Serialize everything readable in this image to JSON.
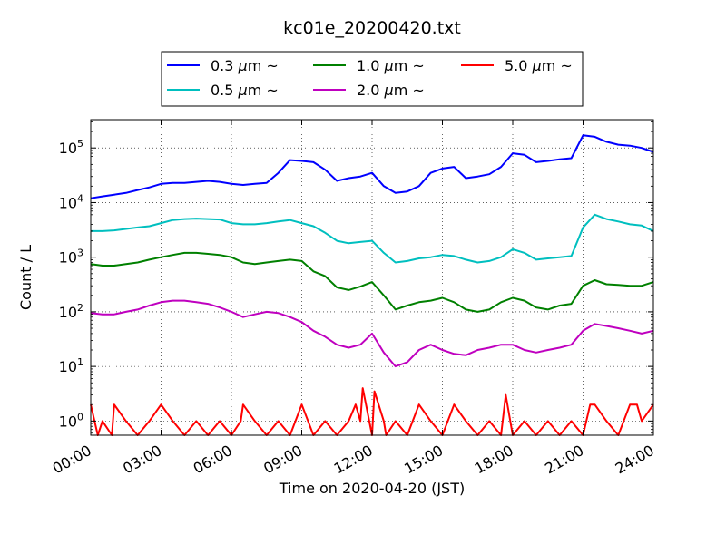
{
  "chart_data": {
    "type": "line",
    "title": "kc01e_20200420.txt",
    "xlabel": "Time on 2020-04-20 (JST)",
    "ylabel": "Count / L",
    "y_scale": "log",
    "xlim": [
      0,
      24
    ],
    "ylim": [
      0.55,
      330000
    ],
    "grid": true,
    "x_tick_labels": [
      "00:00",
      "03:00",
      "06:00",
      "09:00",
      "12:00",
      "15:00",
      "18:00",
      "21:00",
      "24:00"
    ],
    "x_tick_hours": [
      0,
      3,
      6,
      9,
      12,
      15,
      18,
      21,
      24
    ],
    "y_tick_exponents": [
      0,
      1,
      2,
      3,
      4,
      5
    ],
    "y_tick_base": "10",
    "legend_position": "top-center",
    "series": [
      {
        "name": "0.3 μm ~",
        "label_prefix": "0.3",
        "color": "#0000ff",
        "x": [
          0,
          0.5,
          1,
          1.5,
          2,
          2.5,
          3,
          3.5,
          4,
          4.5,
          5,
          5.5,
          6,
          6.5,
          7,
          7.5,
          8,
          8.5,
          9,
          9.5,
          10,
          10.5,
          11,
          11.5,
          12,
          12.5,
          13,
          13.5,
          14,
          14.5,
          15,
          15.5,
          16,
          16.5,
          17,
          17.5,
          18,
          18.5,
          19,
          19.5,
          20,
          20.5,
          21,
          21.5,
          22,
          22.5,
          23,
          23.5,
          24
        ],
        "values": [
          12000,
          13000,
          14000,
          15000,
          17000,
          19000,
          22000,
          23000,
          23000,
          24000,
          25000,
          24000,
          22000,
          21000,
          22000,
          23000,
          35000,
          60000,
          58000,
          55000,
          40000,
          25000,
          28000,
          30000,
          35000,
          20000,
          15000,
          16000,
          20000,
          35000,
          42000,
          45000,
          28000,
          30000,
          33000,
          45000,
          80000,
          75000,
          55000,
          58000,
          62000,
          65000,
          170000,
          160000,
          130000,
          115000,
          110000,
          100000,
          85000
        ]
      },
      {
        "name": "0.5 μm ~",
        "label_prefix": "0.5",
        "color": "#00bfbf",
        "x": [
          0,
          0.5,
          1,
          1.5,
          2,
          2.5,
          3,
          3.5,
          4,
          4.5,
          5,
          5.5,
          6,
          6.5,
          7,
          7.5,
          8,
          8.5,
          9,
          9.5,
          10,
          10.5,
          11,
          11.5,
          12,
          12.5,
          13,
          13.5,
          14,
          14.5,
          15,
          15.5,
          16,
          16.5,
          17,
          17.5,
          18,
          18.5,
          19,
          19.5,
          20,
          20.5,
          21,
          21.5,
          22,
          22.5,
          23,
          23.5,
          24
        ],
        "values": [
          3000,
          3000,
          3100,
          3300,
          3500,
          3700,
          4200,
          4800,
          5000,
          5100,
          5000,
          4900,
          4200,
          4000,
          4000,
          4200,
          4500,
          4800,
          4200,
          3700,
          2800,
          2000,
          1800,
          1900,
          2000,
          1200,
          800,
          850,
          950,
          1000,
          1100,
          1050,
          900,
          800,
          850,
          1000,
          1400,
          1200,
          900,
          950,
          1000,
          1050,
          3500,
          6000,
          5000,
          4500,
          4000,
          3800,
          3000
        ]
      },
      {
        "name": "1.0 μm ~",
        "label_prefix": "1.0",
        "color": "#008000",
        "x": [
          0,
          0.5,
          1,
          1.5,
          2,
          2.5,
          3,
          3.5,
          4,
          4.5,
          5,
          5.5,
          6,
          6.5,
          7,
          7.5,
          8,
          8.5,
          9,
          9.5,
          10,
          10.5,
          11,
          11.5,
          12,
          12.5,
          13,
          13.5,
          14,
          14.5,
          15,
          15.5,
          16,
          16.5,
          17,
          17.5,
          18,
          18.5,
          19,
          19.5,
          20,
          20.5,
          21,
          21.5,
          22,
          22.5,
          23,
          23.5,
          24
        ],
        "values": [
          750,
          700,
          700,
          750,
          800,
          900,
          1000,
          1100,
          1200,
          1200,
          1150,
          1100,
          1000,
          800,
          750,
          800,
          850,
          900,
          850,
          550,
          450,
          280,
          250,
          290,
          350,
          200,
          110,
          130,
          150,
          160,
          180,
          150,
          110,
          100,
          110,
          150,
          180,
          160,
          120,
          110,
          130,
          140,
          300,
          380,
          320,
          310,
          300,
          300,
          350
        ]
      },
      {
        "name": "2.0 μm ~",
        "label_prefix": "2.0",
        "color": "#bf00bf",
        "x": [
          0,
          0.5,
          1,
          1.5,
          2,
          2.5,
          3,
          3.5,
          4,
          4.5,
          5,
          5.5,
          6,
          6.5,
          7,
          7.5,
          8,
          8.5,
          9,
          9.5,
          10,
          10.5,
          11,
          11.5,
          12,
          12.5,
          13,
          13.5,
          14,
          14.5,
          15,
          15.5,
          16,
          16.5,
          17,
          17.5,
          18,
          18.5,
          19,
          19.5,
          20,
          20.5,
          21,
          21.5,
          22,
          22.5,
          23,
          23.5,
          24
        ],
        "values": [
          95,
          90,
          90,
          100,
          110,
          130,
          150,
          160,
          160,
          150,
          140,
          120,
          100,
          80,
          90,
          100,
          95,
          80,
          65,
          45,
          35,
          25,
          22,
          25,
          40,
          18,
          10,
          12,
          20,
          25,
          20,
          17,
          16,
          20,
          22,
          25,
          25,
          20,
          18,
          20,
          22,
          25,
          45,
          60,
          55,
          50,
          45,
          40,
          45
        ]
      },
      {
        "name": "5.0 μm ~",
        "label_prefix": "5.0",
        "color": "#ff0000",
        "x": [
          0,
          0.3,
          0.5,
          0.9,
          1,
          1.5,
          2,
          2.5,
          3,
          3.5,
          4,
          4.5,
          5,
          5.5,
          6,
          6.4,
          6.5,
          7,
          7.5,
          8,
          8.5,
          9,
          9.5,
          10,
          10.5,
          11,
          11.3,
          11.5,
          11.6,
          12,
          12.1,
          12.5,
          12.6,
          13,
          13.5,
          14,
          14.5,
          15,
          15.5,
          16,
          16.5,
          17,
          17.5,
          17.7,
          18,
          18.5,
          19,
          19.5,
          20,
          20.5,
          21,
          21.3,
          21.5,
          22,
          22.5,
          23,
          23.3,
          23.5,
          24
        ],
        "values": [
          2,
          0.55,
          1,
          0.55,
          2,
          1,
          0.55,
          1,
          2,
          1,
          0.55,
          1,
          0.55,
          1,
          0.55,
          1,
          2,
          1,
          0.55,
          1,
          0.55,
          2,
          0.55,
          1,
          0.55,
          1,
          2,
          1,
          4,
          0.55,
          3.5,
          1,
          0.55,
          1,
          0.55,
          2,
          1,
          0.55,
          2,
          1,
          0.55,
          1,
          0.55,
          3,
          0.55,
          1,
          0.55,
          1,
          0.55,
          1,
          0.55,
          2,
          2,
          1,
          0.55,
          2,
          2,
          1,
          2
        ]
      }
    ]
  }
}
